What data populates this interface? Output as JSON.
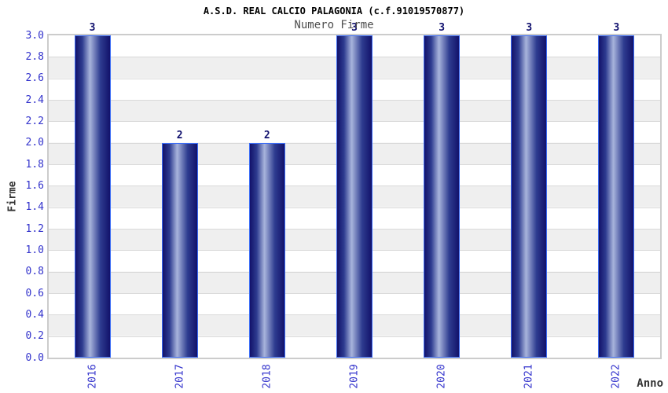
{
  "chart_data": {
    "type": "bar",
    "title": "A.S.D. REAL CALCIO PALAGONIA (c.f.91019570877)",
    "subtitle": "Numero Firme",
    "xlabel": "Anno",
    "ylabel": "Firme",
    "categories": [
      "2016",
      "2017",
      "2018",
      "2019",
      "2020",
      "2021",
      "2022"
    ],
    "values": [
      3,
      2,
      2,
      3,
      3,
      3,
      3
    ],
    "value_labels": [
      "3",
      "2",
      "2",
      "3",
      "3",
      "3",
      "3"
    ],
    "ylim": [
      0.0,
      3.0
    ],
    "ytick_step": 0.2,
    "ytick_labels": [
      "0.0",
      "0.2",
      "0.4",
      "0.6",
      "0.8",
      "1.0",
      "1.2",
      "1.4",
      "1.6",
      "1.8",
      "2.0",
      "2.2",
      "2.4",
      "2.6",
      "2.8",
      "3.0"
    ],
    "grid": "horizontal alternating bands, light gridline at each 0.2",
    "legend": "none",
    "bar_orientation": "vertical",
    "xtick_rotation_degrees": -90
  },
  "colors": {
    "background": "#ffffff",
    "plot_border": "#cccccc",
    "band_white": "#ffffff",
    "band_gray": "#efefef",
    "gridline": "#d9d9d9",
    "bar_border": "#3b6cf5",
    "bar_dark": "#12126a",
    "bar_mid": "#2e3c90",
    "bar_light": "#a8b4dc",
    "tick_label": "#3333cc",
    "value_label": "#10106e",
    "title": "#000000",
    "subtitle": "#4d4d4d",
    "axis_title": "#333333"
  }
}
